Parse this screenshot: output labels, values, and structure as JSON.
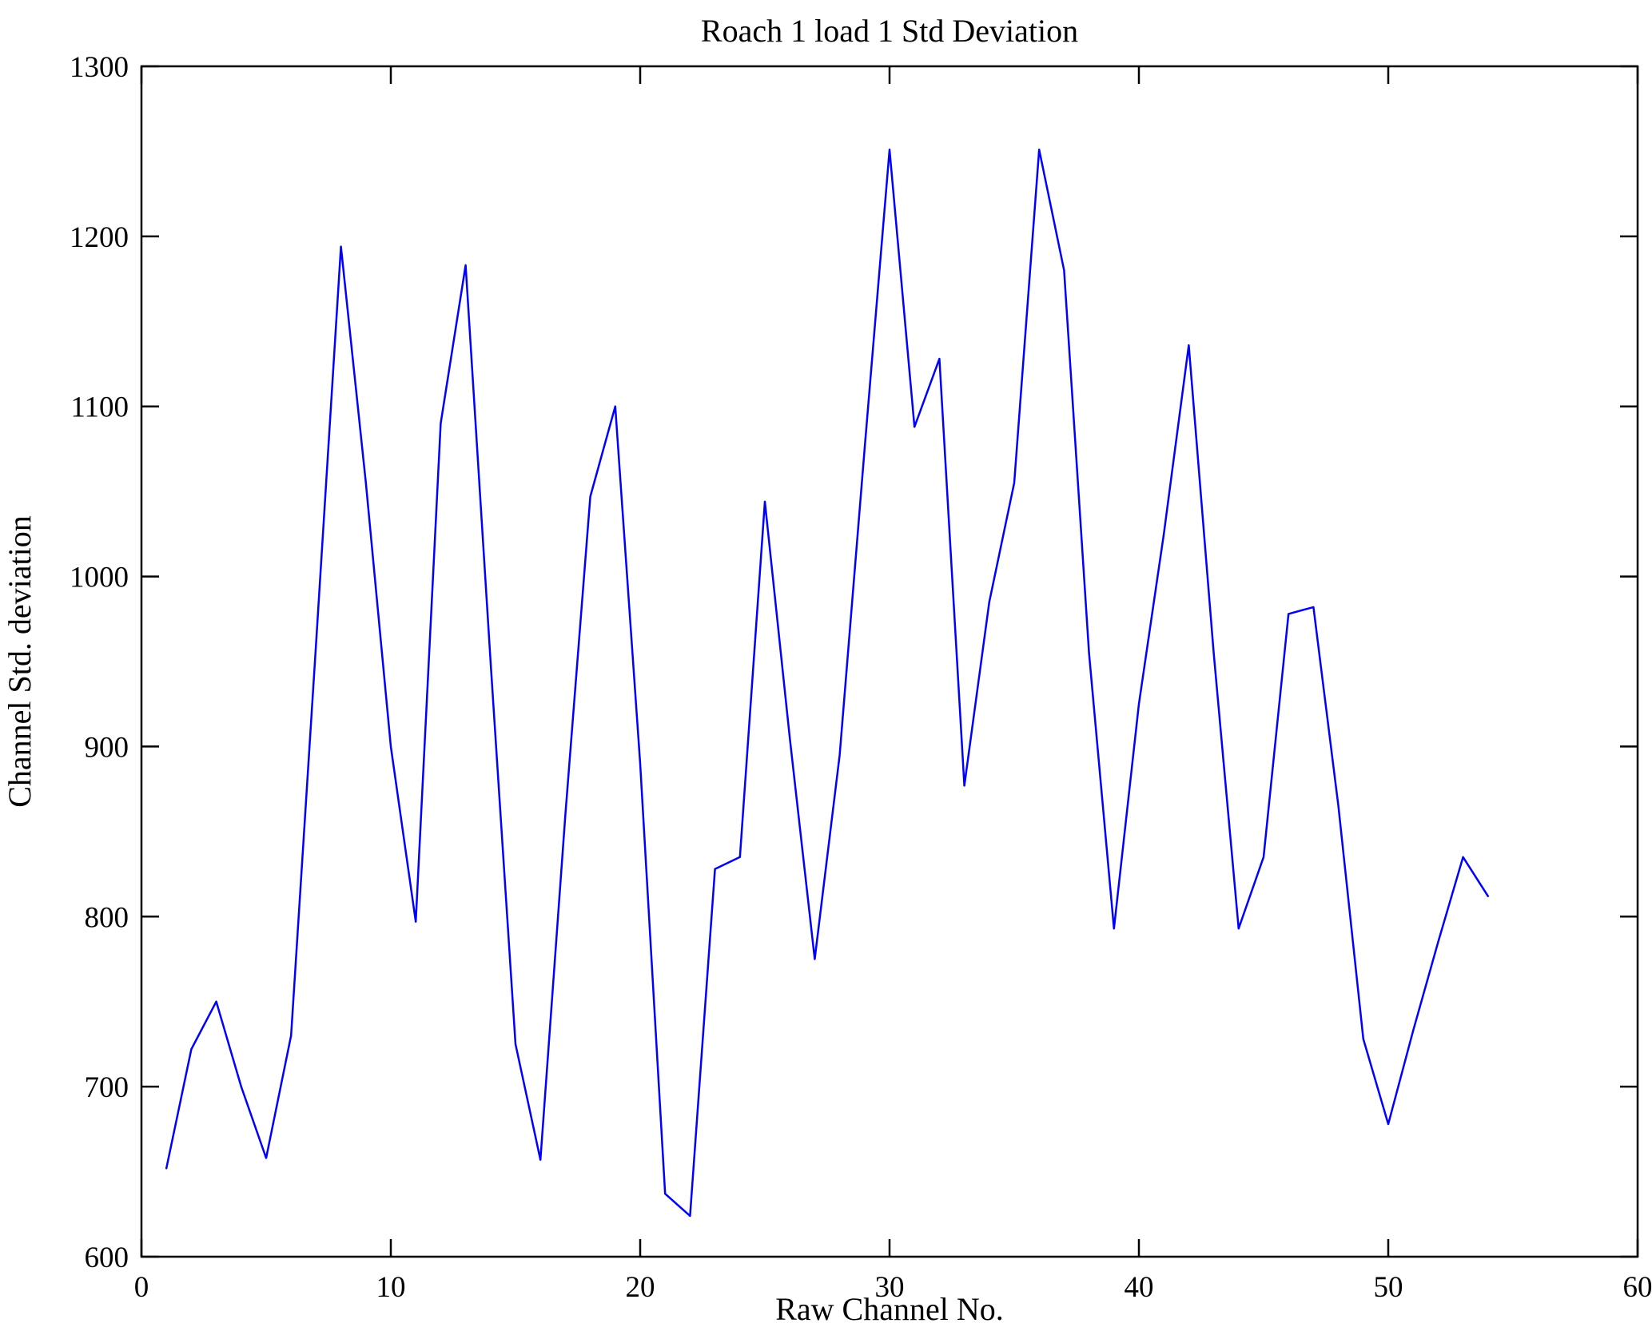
{
  "chart_data": {
    "type": "line",
    "title": "Roach 1 load 1 Std Deviation",
    "xlabel": "Raw Channel No.",
    "ylabel": "Channel Std. deviation",
    "xlim": [
      0,
      60
    ],
    "ylim": [
      600,
      1300
    ],
    "xticks": [
      0,
      10,
      20,
      30,
      40,
      50,
      60
    ],
    "yticks": [
      600,
      700,
      800,
      900,
      1000,
      1100,
      1200,
      1300
    ],
    "grid": false,
    "legend": null,
    "line_color": "#0000ff",
    "axis_color": "#000000",
    "x": [
      1,
      2,
      3,
      4,
      5,
      6,
      7,
      8,
      9,
      10,
      11,
      12,
      13,
      14,
      15,
      16,
      17,
      18,
      19,
      20,
      21,
      22,
      23,
      24,
      25,
      26,
      27,
      28,
      29,
      30,
      31,
      32,
      33,
      34,
      35,
      36,
      37,
      38,
      39,
      40,
      41,
      42,
      43,
      44,
      45,
      46,
      47,
      48,
      49,
      50,
      51,
      52,
      53,
      54
    ],
    "y": [
      652,
      722,
      750,
      700,
      658,
      730,
      960,
      1194,
      1055,
      900,
      797,
      1090,
      1183,
      950,
      725,
      657,
      860,
      1047,
      1100,
      890,
      637,
      624,
      828,
      835,
      1044,
      905,
      775,
      895,
      1075,
      1251,
      1088,
      1128,
      877,
      985,
      1055,
      1251,
      1180,
      955,
      793,
      925,
      1025,
      1136,
      955,
      793,
      835,
      978,
      982,
      865,
      728,
      678,
      733,
      785,
      835,
      812
    ]
  }
}
